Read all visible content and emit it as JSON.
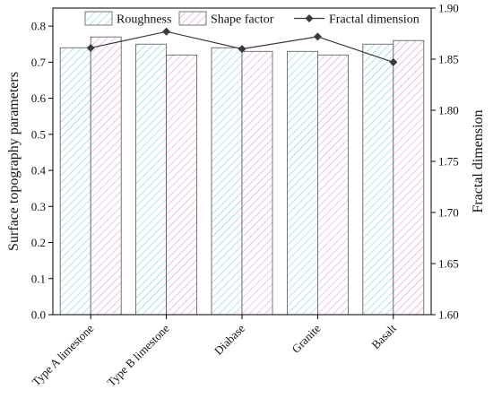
{
  "chart_data": {
    "type": "bar",
    "categories": [
      "Type A limestone",
      "Type B limestone",
      "Diabase",
      "Granite",
      "Basalt"
    ],
    "series": [
      {
        "name": "Roughness",
        "kind": "bar",
        "axis": "left",
        "color": "#7fd3d8",
        "pattern": "hatch",
        "values": [
          0.74,
          0.75,
          0.74,
          0.73,
          0.75
        ]
      },
      {
        "name": "Shape factor",
        "kind": "bar",
        "axis": "left",
        "color": "#e59ad8",
        "pattern": "hatch",
        "values": [
          0.77,
          0.72,
          0.73,
          0.72,
          0.76
        ]
      },
      {
        "name": "Fractal dimension",
        "kind": "line",
        "axis": "right",
        "color": "#3a3a3a",
        "marker": "diamond",
        "values": [
          1.861,
          1.877,
          1.86,
          1.872,
          1.847
        ]
      }
    ],
    "ylabel": "Surface topography parameters",
    "y2label": "Fractal dimension",
    "ylim": [
      0,
      0.85
    ],
    "y2lim": [
      1.6,
      1.9
    ],
    "yticks": [
      "0.0",
      "0.1",
      "0.2",
      "0.3",
      "0.4",
      "0.5",
      "0.6",
      "0.7",
      "0.8"
    ],
    "y2ticks": [
      "1.60",
      "1.65",
      "1.70",
      "1.75",
      "1.80",
      "1.85",
      "1.90"
    ],
    "legend_position": "top",
    "grid": false
  }
}
